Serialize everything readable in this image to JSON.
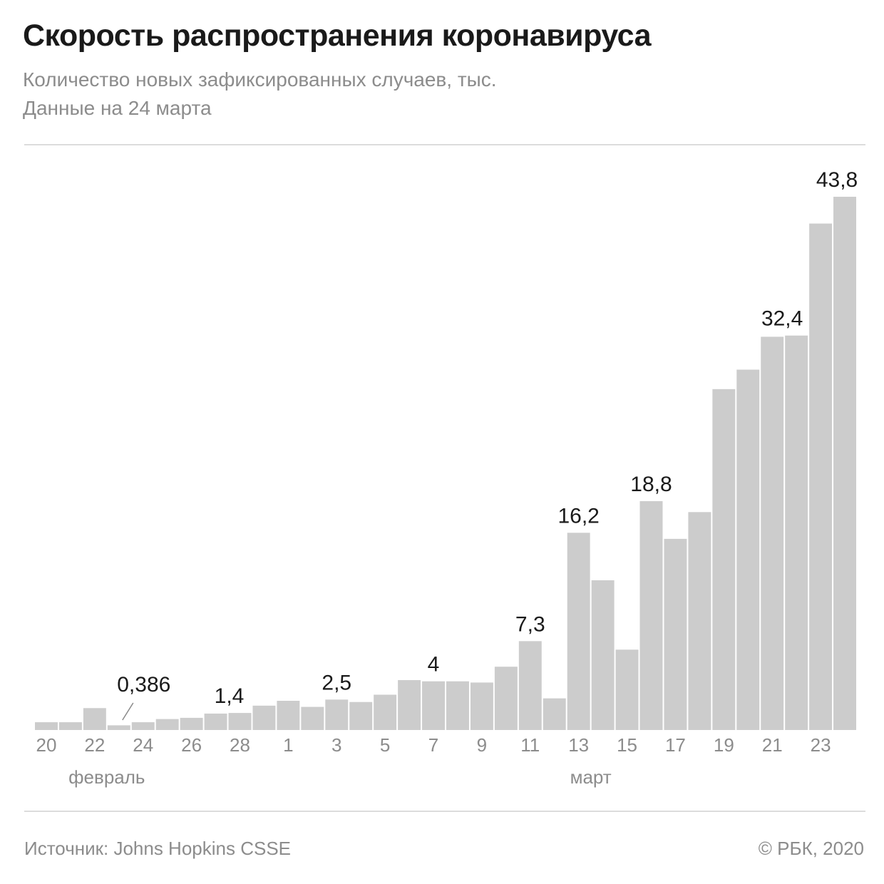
{
  "chart_data": {
    "type": "bar",
    "title": "Скорость распространения коронавируса",
    "subtitle": "Количество новых зафиксированных случаев, тыс.",
    "subtitle2": "Данные на 24 марта",
    "xlabel": "",
    "ylabel": "",
    "ylim": [
      0,
      43.8
    ],
    "categories": [
      "20",
      "21",
      "22",
      "23",
      "24",
      "25",
      "26",
      "27",
      "28",
      "29",
      "1",
      "2",
      "3",
      "4",
      "5",
      "6",
      "7",
      "8",
      "9",
      "10",
      "11",
      "12",
      "13",
      "14",
      "15",
      "16",
      "17",
      "18",
      "19",
      "20",
      "21",
      "22",
      "23",
      "24"
    ],
    "values": [
      0.64,
      0.64,
      1.8,
      0.386,
      0.64,
      0.9,
      1.0,
      1.35,
      1.4,
      2.0,
      2.4,
      1.9,
      2.5,
      2.3,
      2.9,
      4.1,
      4.0,
      4.0,
      3.9,
      5.2,
      7.3,
      2.6,
      16.2,
      12.3,
      6.6,
      18.8,
      15.7,
      17.9,
      28.0,
      29.6,
      32.3,
      32.4,
      41.6,
      43.8
    ],
    "tick_labels": [
      "20",
      "22",
      "24",
      "26",
      "28",
      "1",
      "3",
      "5",
      "7",
      "9",
      "11",
      "13",
      "15",
      "17",
      "19",
      "21",
      "23"
    ],
    "tick_indices": [
      0,
      2,
      4,
      6,
      8,
      10,
      12,
      14,
      16,
      18,
      20,
      22,
      24,
      26,
      28,
      30,
      32
    ],
    "data_labels": [
      {
        "index": 3,
        "text": "0,386"
      },
      {
        "index": 8,
        "text": "1,4"
      },
      {
        "index": 12,
        "text": "2,5"
      },
      {
        "index": 16,
        "text": "4"
      },
      {
        "index": 20,
        "text": "7,3"
      },
      {
        "index": 22,
        "text": "16,2"
      },
      {
        "index": 25,
        "text": "18,8"
      },
      {
        "index": 31,
        "text": "32,4"
      },
      {
        "index": 33,
        "text": "43,8"
      }
    ],
    "month_labels": [
      {
        "text": "февраль",
        "index": 2.5
      },
      {
        "text": "март",
        "index": 22.5
      }
    ],
    "bar_color": "#cccccc",
    "grid": false,
    "legend": "none"
  },
  "footer": {
    "source": "Источник: Johns Hopkins CSSE",
    "copyright": "© РБК, 2020"
  }
}
